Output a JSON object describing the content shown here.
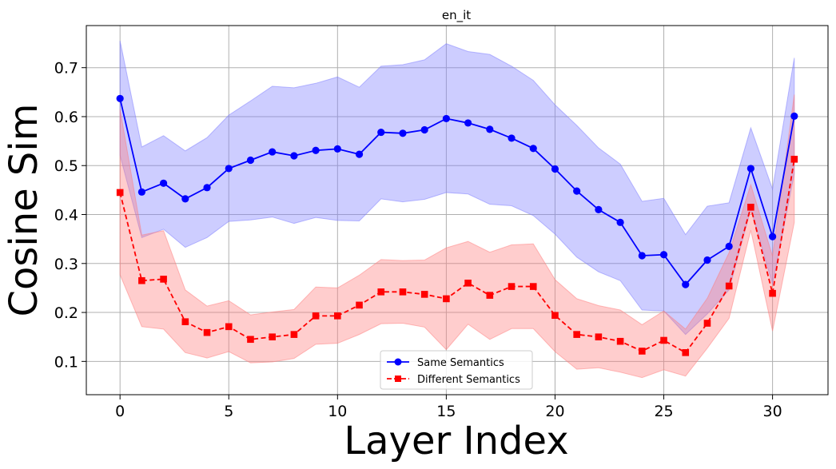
{
  "chart_data": {
    "type": "line",
    "title": "en_it",
    "xlabel": "Layer Index",
    "ylabel": "Cosine Sim",
    "xlim": [
      -1.55,
      32.55
    ],
    "ylim": [
      0.032,
      0.786
    ],
    "xticks": [
      0,
      5,
      10,
      15,
      20,
      25,
      30
    ],
    "yticks": [
      0.1,
      0.2,
      0.3,
      0.4,
      0.5,
      0.6,
      0.7
    ],
    "grid": true,
    "legend_position": "bottom-center",
    "x": [
      0,
      1,
      2,
      3,
      4,
      5,
      6,
      7,
      8,
      9,
      10,
      11,
      12,
      13,
      14,
      15,
      16,
      17,
      18,
      19,
      20,
      21,
      22,
      23,
      24,
      25,
      26,
      27,
      28,
      29,
      30,
      31
    ],
    "series": [
      {
        "name": "Same Semantics",
        "color": "#0000ff",
        "band_color": "#7b7bff",
        "marker": "circle",
        "linestyle": "solid",
        "values": [
          0.637,
          0.446,
          0.464,
          0.432,
          0.455,
          0.494,
          0.511,
          0.528,
          0.52,
          0.531,
          0.534,
          0.523,
          0.568,
          0.566,
          0.573,
          0.596,
          0.587,
          0.574,
          0.556,
          0.535,
          0.493,
          0.448,
          0.41,
          0.384,
          0.316,
          0.318,
          0.257,
          0.307,
          0.335,
          0.494,
          0.355,
          0.601
        ],
        "upper": [
          0.755,
          0.538,
          0.561,
          0.53,
          0.557,
          0.603,
          0.632,
          0.662,
          0.659,
          0.668,
          0.681,
          0.66,
          0.703,
          0.706,
          0.716,
          0.749,
          0.733,
          0.727,
          0.703,
          0.674,
          0.624,
          0.582,
          0.536,
          0.503,
          0.427,
          0.433,
          0.359,
          0.417,
          0.424,
          0.577,
          0.452,
          0.72
        ],
        "lower": [
          0.521,
          0.353,
          0.37,
          0.333,
          0.353,
          0.386,
          0.389,
          0.395,
          0.382,
          0.394,
          0.388,
          0.387,
          0.432,
          0.426,
          0.431,
          0.445,
          0.442,
          0.421,
          0.418,
          0.398,
          0.36,
          0.313,
          0.283,
          0.265,
          0.205,
          0.203,
          0.155,
          0.197,
          0.246,
          0.411,
          0.257,
          0.483
        ]
      },
      {
        "name": "Different Semantics",
        "color": "#ff0000",
        "band_color": "#ff7b7b",
        "marker": "square",
        "linestyle": "dashed",
        "values": [
          0.445,
          0.265,
          0.268,
          0.181,
          0.159,
          0.171,
          0.145,
          0.15,
          0.155,
          0.193,
          0.193,
          0.215,
          0.242,
          0.242,
          0.237,
          0.228,
          0.26,
          0.235,
          0.253,
          0.253,
          0.194,
          0.155,
          0.15,
          0.141,
          0.121,
          0.143,
          0.118,
          0.178,
          0.254,
          0.415,
          0.239,
          0.513
        ],
        "upper": [
          0.615,
          0.358,
          0.367,
          0.246,
          0.213,
          0.224,
          0.195,
          0.201,
          0.206,
          0.252,
          0.25,
          0.276,
          0.308,
          0.306,
          0.307,
          0.332,
          0.345,
          0.323,
          0.338,
          0.34,
          0.267,
          0.228,
          0.214,
          0.205,
          0.175,
          0.203,
          0.166,
          0.229,
          0.322,
          0.461,
          0.315,
          0.645
        ],
        "lower": [
          0.277,
          0.171,
          0.166,
          0.118,
          0.107,
          0.12,
          0.097,
          0.099,
          0.106,
          0.135,
          0.137,
          0.155,
          0.177,
          0.178,
          0.17,
          0.124,
          0.176,
          0.145,
          0.167,
          0.167,
          0.12,
          0.084,
          0.087,
          0.078,
          0.067,
          0.083,
          0.07,
          0.127,
          0.188,
          0.368,
          0.162,
          0.384
        ]
      }
    ]
  }
}
